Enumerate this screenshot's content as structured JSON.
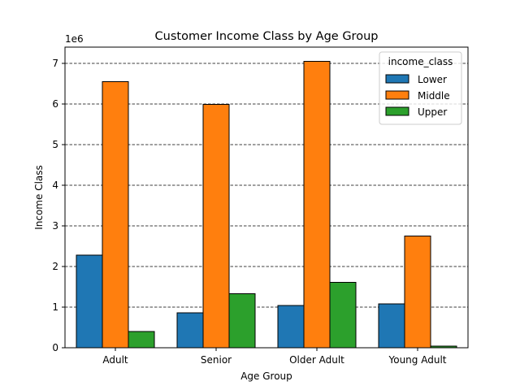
{
  "chart_data": {
    "type": "bar",
    "title": "Customer Income Class by Age Group",
    "xlabel": "Age Group",
    "ylabel": "Income Class",
    "y_multiplier": "1e6",
    "categories": [
      "Adult",
      "Senior",
      "Older Adult",
      "Young Adult"
    ],
    "series": [
      {
        "name": "Lower",
        "color": "#1f77b4",
        "values": [
          2280000,
          860000,
          1040000,
          1080000
        ]
      },
      {
        "name": "Middle",
        "color": "#ff7f0e",
        "values": [
          6550000,
          5990000,
          7050000,
          2750000
        ]
      },
      {
        "name": "Upper",
        "color": "#2ca02c",
        "values": [
          400000,
          1330000,
          1610000,
          40000
        ]
      }
    ],
    "ylim": [
      0,
      7400000
    ],
    "yticks": [
      0,
      1,
      2,
      3,
      4,
      5,
      6,
      7
    ],
    "grid": "y, dashed",
    "legend": {
      "title": "income_class",
      "placement": "top-right"
    }
  }
}
